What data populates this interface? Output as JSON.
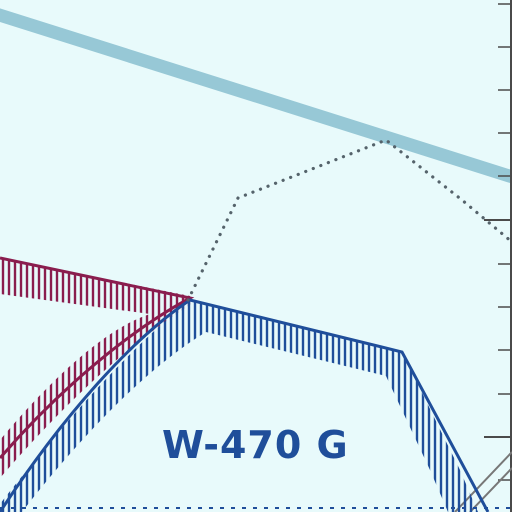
{
  "map": {
    "colors": {
      "background": "#e8fafb",
      "restricted_area": "#1f4e9a",
      "alert_area": "#8a1d4e",
      "route": "#97c8d6",
      "dotted_boundary": "#55636b",
      "grid_line": "#4a4a4a",
      "hatch_gray": "#777777"
    },
    "airspace_label": "W-470 G"
  }
}
